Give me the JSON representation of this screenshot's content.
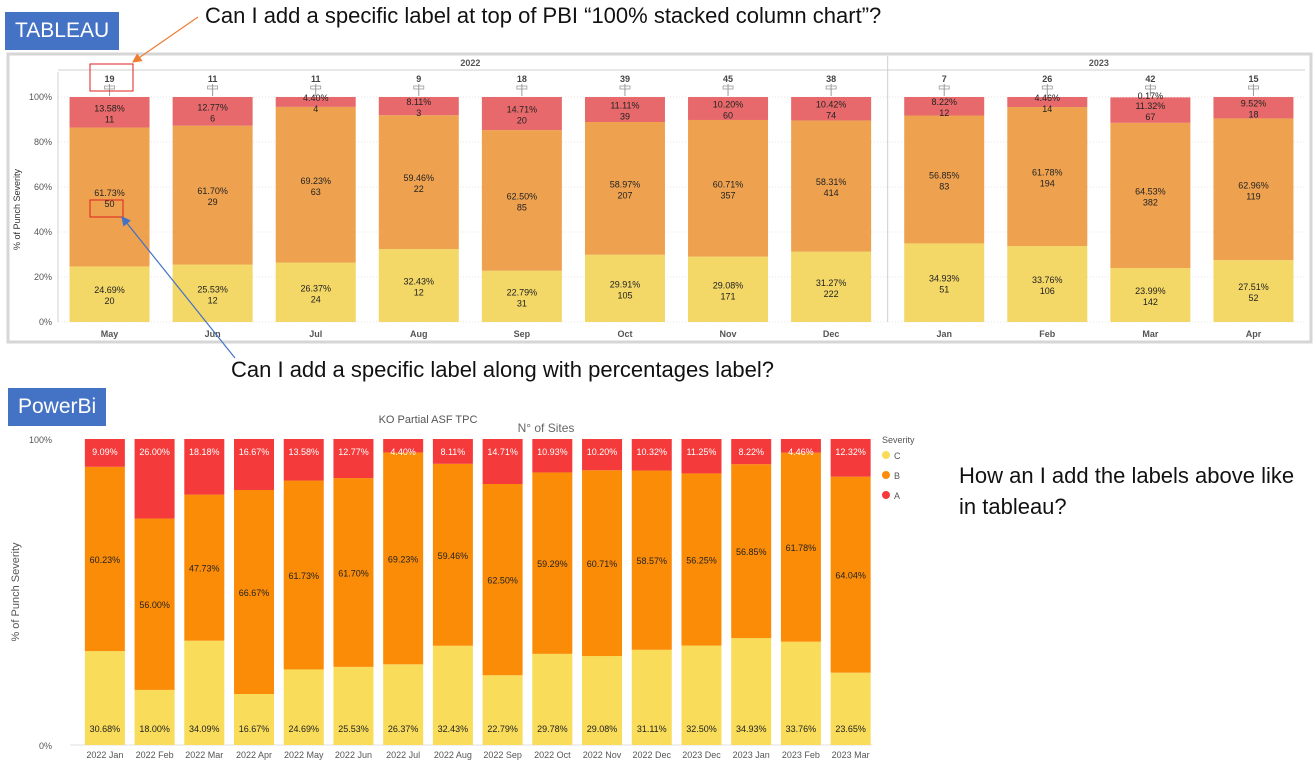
{
  "tags": {
    "tableau": "TABLEAU",
    "powerbi": "PowerBi"
  },
  "questions": {
    "q1": "Can I add a specific label at top of PBI “100% stacked column chart”?",
    "q2": "Can I add a specific label along with percentages label?",
    "q3": "How an I add the labels above like in tableau?"
  },
  "colors": {
    "A": "#e8696b",
    "B": "#eea24f",
    "C": "#f3d767",
    "pbiA": "#f43a3a",
    "pbiB": "#fb8c08",
    "pbiC": "#f8dc5a",
    "annot_red": "#e0201c",
    "arrow_orange": "#ed7d31",
    "arrow_blue": "#4472c4"
  },
  "chart_data": [
    {
      "type": "bar",
      "stacked": "100%",
      "tool": "Tableau",
      "ylabel": "% of Punch Severity",
      "yticks": [
        "0%",
        "20%",
        "40%",
        "60%",
        "80%",
        "100%"
      ],
      "ylim": [
        0,
        100
      ],
      "grid": true,
      "groups": [
        {
          "label": "2022",
          "count": 8
        },
        {
          "label": "2023",
          "count": 4
        }
      ],
      "categories": [
        "May",
        "Jun",
        "Jul",
        "Aug",
        "Sep",
        "Oct",
        "Nov",
        "Dec",
        "Jan",
        "Feb",
        "Mar",
        "Apr"
      ],
      "top_labels": [
        "19",
        "11",
        "11",
        "9",
        "18",
        "39",
        "45",
        "38",
        "7",
        "26",
        "42",
        "15"
      ],
      "series": [
        {
          "name": "C",
          "pct": [
            "24.69%",
            "25.53%",
            "26.37%",
            "32.43%",
            "22.79%",
            "29.91%",
            "29.08%",
            "31.27%",
            "34.93%",
            "33.76%",
            "23.99%",
            "27.51%"
          ],
          "values": [
            24.69,
            25.53,
            26.37,
            32.43,
            22.79,
            29.91,
            29.08,
            31.27,
            34.93,
            33.76,
            23.99,
            27.51
          ],
          "counts": [
            "20",
            "12",
            "24",
            "12",
            "31",
            "105",
            "171",
            "222",
            "51",
            "106",
            "142",
            "52"
          ]
        },
        {
          "name": "B",
          "pct": [
            "61.73%",
            "61.70%",
            "69.23%",
            "59.46%",
            "62.50%",
            "58.97%",
            "60.71%",
            "58.31%",
            "56.85%",
            "61.78%",
            "64.53%",
            "62.96%"
          ],
          "values": [
            61.73,
            61.7,
            69.23,
            59.46,
            62.5,
            58.97,
            60.71,
            58.31,
            56.85,
            61.78,
            64.53,
            62.96
          ],
          "counts": [
            "50",
            "29",
            "63",
            "22",
            "85",
            "207",
            "357",
            "414",
            "83",
            "194",
            "382",
            "119"
          ]
        },
        {
          "name": "A",
          "pct": [
            "13.58%",
            "12.77%",
            "4.40%",
            "8.11%",
            "14.71%",
            "11.11%",
            "10.20%",
            "10.42%",
            "8.22%",
            "4.46%",
            "11.32%",
            "9.52%"
          ],
          "values": [
            13.58,
            12.77,
            4.4,
            8.11,
            14.71,
            11.11,
            10.2,
            10.42,
            8.22,
            4.46,
            11.32,
            9.52
          ],
          "counts": [
            "11",
            "6",
            "4",
            "3",
            "20",
            "39",
            "60",
            "74",
            "12",
            "14",
            "67",
            "18"
          ]
        }
      ],
      "extra_label": {
        "index": 10,
        "text": "0.17%"
      }
    },
    {
      "type": "bar",
      "stacked": "100%",
      "tool": "Power BI",
      "title_fragment": "N° of Sites",
      "title_clipped": "KO Partial  ASF  TPC",
      "ylabel": "% of Punch Severity",
      "yticks": [
        "0%",
        "100%"
      ],
      "ylim": [
        0,
        100
      ],
      "legend": {
        "title": "Severity",
        "entries": [
          "C",
          "B",
          "A"
        ],
        "placement": "right"
      },
      "categories": [
        "2022 Jan",
        "2022 Feb",
        "2022 Mar",
        "2022 Apr",
        "2022 May",
        "2022 Jun",
        "2022 Jul",
        "2022 Aug",
        "2022 Sep",
        "2022 Oct",
        "2022 Nov",
        "2022 Dec",
        "2023 Dec",
        "2023 Jan",
        "2023 Feb",
        "2023 Mar"
      ],
      "series": [
        {
          "name": "C",
          "pct": [
            "30.68%",
            "18.00%",
            "34.09%",
            "16.67%",
            "24.69%",
            "25.53%",
            "26.37%",
            "32.43%",
            "22.79%",
            "29.78%",
            "29.08%",
            "31.11%",
            "32.50%",
            "34.93%",
            "33.76%",
            "23.65%"
          ],
          "values": [
            30.68,
            18.0,
            34.09,
            16.67,
            24.69,
            25.53,
            26.37,
            32.43,
            22.79,
            29.78,
            29.08,
            31.11,
            32.5,
            34.93,
            33.76,
            23.65
          ]
        },
        {
          "name": "B",
          "pct": [
            "60.23%",
            "56.00%",
            "47.73%",
            "66.67%",
            "61.73%",
            "61.70%",
            "69.23%",
            "59.46%",
            "62.50%",
            "59.29%",
            "60.71%",
            "58.57%",
            "56.25%",
            "56.85%",
            "61.78%",
            "64.04%"
          ],
          "values": [
            60.23,
            56.0,
            47.73,
            66.67,
            61.73,
            61.7,
            69.23,
            59.46,
            62.5,
            59.29,
            60.71,
            58.57,
            56.25,
            56.85,
            61.78,
            64.04
          ]
        },
        {
          "name": "A",
          "pct": [
            "9.09%",
            "26.00%",
            "18.18%",
            "16.67%",
            "13.58%",
            "12.77%",
            "4.40%",
            "8.11%",
            "14.71%",
            "10.93%",
            "10.20%",
            "10.32%",
            "11.25%",
            "8.22%",
            "4.46%",
            "12.32%"
          ],
          "values": [
            9.09,
            26.0,
            18.18,
            16.67,
            13.58,
            12.77,
            4.4,
            8.11,
            14.71,
            10.93,
            10.2,
            10.32,
            11.25,
            8.22,
            4.46,
            12.32
          ]
        }
      ]
    }
  ]
}
